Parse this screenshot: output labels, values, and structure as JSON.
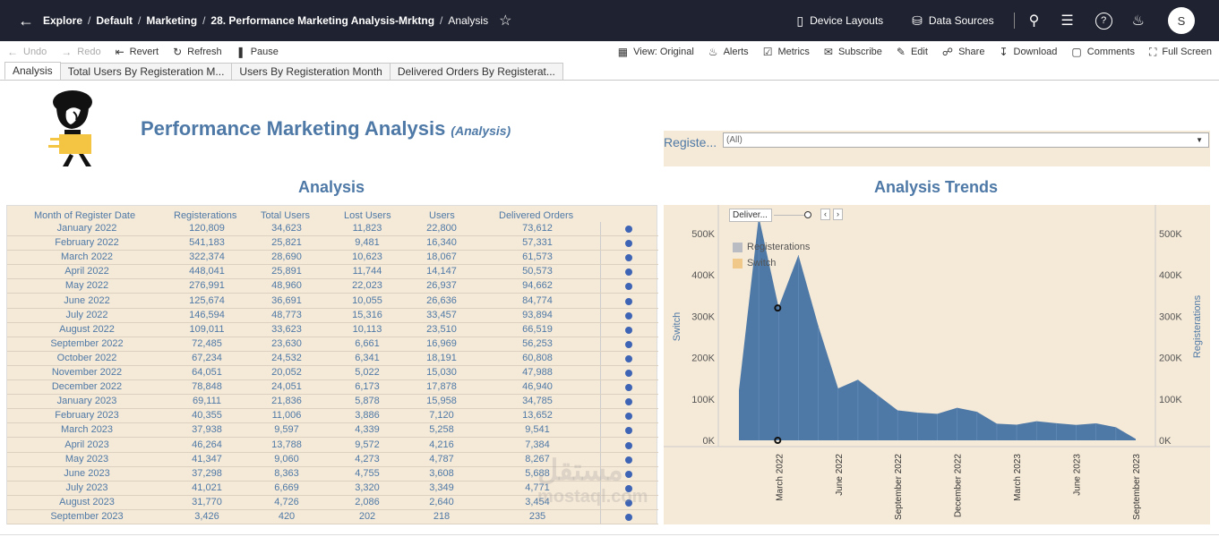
{
  "nav": {
    "breadcrumbs": [
      "Explore",
      "Default",
      "Marketing",
      "28. Performance Marketing Analysis-Mrktng"
    ],
    "current": "Analysis",
    "device_layouts": "Device Layouts",
    "data_sources": "Data Sources",
    "avatar": "S"
  },
  "toolbar": {
    "undo": "Undo",
    "redo": "Redo",
    "revert": "Revert",
    "refresh": "Refresh",
    "pause": "Pause",
    "view": "View: Original",
    "alerts": "Alerts",
    "metrics": "Metrics",
    "subscribe": "Subscribe",
    "edit": "Edit",
    "share": "Share",
    "download": "Download",
    "comments": "Comments",
    "full_screen": "Full Screen"
  },
  "tabs": [
    "Analysis",
    "Total Users By Registeration M...",
    "Users By Registeration Month",
    "Delivered Orders By Registerat..."
  ],
  "dashboard": {
    "title": "Performance Marketing Analysis",
    "subtitle": "(Analysis)",
    "filter_label": "Registe...",
    "filter_value": "(All)",
    "table_title": "Analysis",
    "chart_title": "Analysis Trends"
  },
  "table": {
    "headers": [
      "Month of Register Date",
      "Registerations",
      "Total Users",
      "Lost Users",
      "Users",
      "Delivered Orders"
    ],
    "rows": [
      [
        "January 2022",
        "120,809",
        "34,623",
        "11,823",
        "22,800",
        "73,612"
      ],
      [
        "February 2022",
        "541,183",
        "25,821",
        "9,481",
        "16,340",
        "57,331"
      ],
      [
        "March 2022",
        "322,374",
        "28,690",
        "10,623",
        "18,067",
        "61,573"
      ],
      [
        "April 2022",
        "448,041",
        "25,891",
        "11,744",
        "14,147",
        "50,573"
      ],
      [
        "May 2022",
        "276,991",
        "48,960",
        "22,023",
        "26,937",
        "94,662"
      ],
      [
        "June 2022",
        "125,674",
        "36,691",
        "10,055",
        "26,636",
        "84,774"
      ],
      [
        "July 2022",
        "146,594",
        "48,773",
        "15,316",
        "33,457",
        "93,894"
      ],
      [
        "August 2022",
        "109,011",
        "33,623",
        "10,113",
        "23,510",
        "66,519"
      ],
      [
        "September 2022",
        "72,485",
        "23,630",
        "6,661",
        "16,969",
        "56,253"
      ],
      [
        "October 2022",
        "67,234",
        "24,532",
        "6,341",
        "18,191",
        "60,808"
      ],
      [
        "November 2022",
        "64,051",
        "20,052",
        "5,022",
        "15,030",
        "47,988"
      ],
      [
        "December 2022",
        "78,848",
        "24,051",
        "6,173",
        "17,878",
        "46,940"
      ],
      [
        "January 2023",
        "69,111",
        "21,836",
        "5,878",
        "15,958",
        "34,785"
      ],
      [
        "February 2023",
        "40,355",
        "11,006",
        "3,886",
        "7,120",
        "13,652"
      ],
      [
        "March 2023",
        "37,938",
        "9,597",
        "4,339",
        "5,258",
        "9,541"
      ],
      [
        "April 2023",
        "46,264",
        "13,788",
        "9,572",
        "4,216",
        "7,384"
      ],
      [
        "May 2023",
        "41,347",
        "9,060",
        "4,273",
        "4,787",
        "8,267"
      ],
      [
        "June 2023",
        "37,298",
        "8,363",
        "4,755",
        "3,608",
        "5,688"
      ],
      [
        "July 2023",
        "41,021",
        "6,669",
        "3,320",
        "3,349",
        "4,771"
      ],
      [
        "August 2023",
        "31,770",
        "4,726",
        "2,086",
        "2,640",
        "3,454"
      ],
      [
        "September 2023",
        "3,426",
        "420",
        "202",
        "218",
        "235"
      ]
    ]
  },
  "chart_data": {
    "type": "area",
    "title": "Analysis Trends",
    "x": [
      "January 2022",
      "February 2022",
      "March 2022",
      "April 2022",
      "May 2022",
      "June 2022",
      "July 2022",
      "August 2022",
      "September 2022",
      "October 2022",
      "November 2022",
      "December 2022",
      "January 2023",
      "February 2023",
      "March 2023",
      "April 2023",
      "May 2023",
      "June 2023",
      "July 2023",
      "August 2023",
      "September 2023"
    ],
    "x_tick_labels": [
      "March 2022",
      "June 2022",
      "September 2022",
      "December 2022",
      "March 2023",
      "June 2023",
      "September 2023"
    ],
    "series": [
      {
        "name": "Registerations",
        "values": [
          120809,
          541183,
          322374,
          448041,
          276991,
          125674,
          146594,
          109011,
          72485,
          67234,
          64051,
          78848,
          69111,
          40355,
          37938,
          46264,
          41347,
          37298,
          41021,
          31770,
          3426
        ]
      }
    ],
    "switch_marker_values": [
      0,
      0,
      320000
    ],
    "y_ticks": [
      "0K",
      "100K",
      "200K",
      "300K",
      "400K",
      "500K"
    ],
    "ylim": [
      0,
      560000
    ],
    "left_axis_label": "Switch",
    "right_axis_label": "Registerations",
    "legend": {
      "control": "Deliver...",
      "items": [
        {
          "name": "Registerations",
          "color": "#b9bcc3"
        },
        {
          "name": "Switch",
          "color": "#f0c98a"
        }
      ]
    },
    "area_color": "#4e79a7"
  },
  "watermark": {
    "text": "مستقل",
    "sub": "mostaql.com"
  }
}
